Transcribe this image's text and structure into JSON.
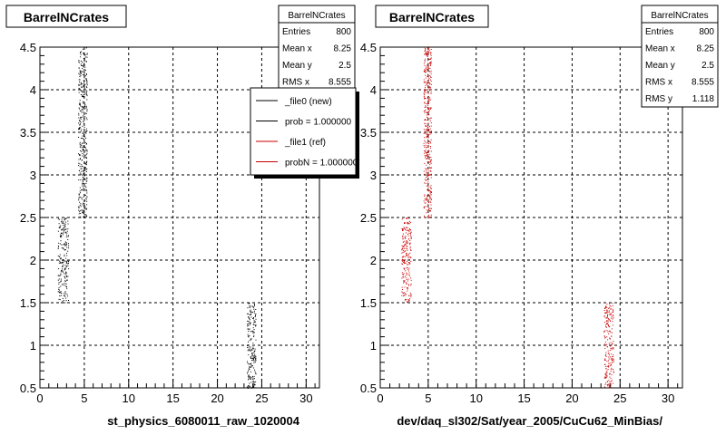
{
  "chart_data": [
    {
      "type": "scatter",
      "title": "BarrelNCrates",
      "xlabel": "st_physics_6080011_raw_1020004",
      "ylabel": "",
      "xlim": [
        0,
        31.5
      ],
      "ylim": [
        0.5,
        4.5
      ],
      "xticks": [
        "0",
        "5",
        "10",
        "15",
        "20",
        "25",
        "30"
      ],
      "yticks": [
        "0.5",
        "1",
        "1.5",
        "2",
        "2.5",
        "3",
        "3.5",
        "4",
        "4.5"
      ],
      "grid": true,
      "point_color": "#000000",
      "clusters": [
        {
          "x": [
            2.0,
            3.2
          ],
          "y": [
            1.5,
            2.5
          ]
        },
        {
          "x": [
            4.3,
            5.3
          ],
          "y": [
            2.5,
            4.5
          ]
        },
        {
          "x": [
            23.3,
            24.3
          ],
          "y": [
            0.5,
            1.5
          ]
        }
      ],
      "stats": {
        "title": "BarrelNCrates",
        "rows": [
          {
            "label": "Entries",
            "value": "800"
          },
          {
            "label": "Mean x",
            "value": "8.25"
          },
          {
            "label": "Mean y",
            "value": "2.5"
          },
          {
            "label": "RMS x",
            "value": "8.555"
          }
        ]
      },
      "legend": {
        "placement": "top-right",
        "entries": [
          {
            "label": "_file0 (new)",
            "color": "#000000"
          },
          {
            "label": "prob = 1.000000",
            "color": "#000000"
          },
          {
            "label": "_file1 (ref)",
            "color": "#cc0000"
          },
          {
            "label": "probN = 1.000000",
            "color": "#cc0000"
          }
        ]
      }
    },
    {
      "type": "scatter",
      "title": "BarrelNCrates",
      "xlabel": "dev/daq_sl302/Sat/year_2005/CuCu62_MinBias/",
      "ylabel": "",
      "xlim": [
        0,
        31.5
      ],
      "ylim": [
        0.5,
        4.5
      ],
      "xticks": [
        "0",
        "5",
        "10",
        "15",
        "20",
        "25",
        "30"
      ],
      "yticks": [
        "0.5",
        "1",
        "1.5",
        "2",
        "2.5",
        "3",
        "3.5",
        "4",
        "4.5"
      ],
      "grid": true,
      "point_color": "#cc0000",
      "clusters": [
        {
          "x": [
            2.2,
            3.2
          ],
          "y": [
            1.5,
            2.5
          ]
        },
        {
          "x": [
            4.5,
            5.3
          ],
          "y": [
            2.5,
            4.5
          ]
        },
        {
          "x": [
            23.3,
            24.3
          ],
          "y": [
            0.5,
            1.5
          ]
        }
      ],
      "stats": {
        "title": "BarrelNCrates",
        "rows": [
          {
            "label": "Entries",
            "value": "800"
          },
          {
            "label": "Mean x",
            "value": "8.25"
          },
          {
            "label": "Mean y",
            "value": "2.5"
          },
          {
            "label": "RMS x",
            "value": "8.555"
          },
          {
            "label": "RMS y",
            "value": "1.118"
          }
        ]
      }
    }
  ]
}
